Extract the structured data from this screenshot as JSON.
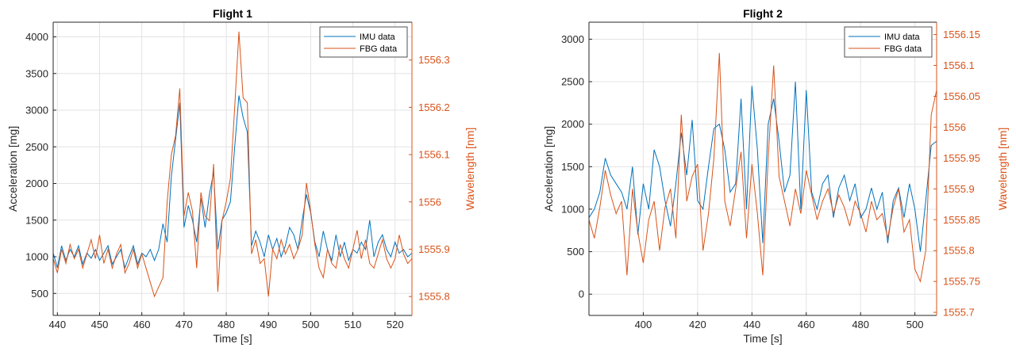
{
  "colors": {
    "imu": "#0072BD",
    "fbg": "#D95319",
    "grid": "#e3e3e3",
    "axis": "#262626"
  },
  "chart_data": [
    {
      "type": "line",
      "title": "Flight 1",
      "xlabel": "Time [s]",
      "ylabel_left": "Acceleration [mg]",
      "ylabel_right": "Wavelength [nm]",
      "xlim": [
        439,
        524
      ],
      "ylim_left": [
        200,
        4200
      ],
      "ylim_right": [
        1555.76,
        1556.38
      ],
      "xticks": [
        440,
        450,
        460,
        470,
        480,
        490,
        500,
        510,
        520
      ],
      "yticks_left": [
        500,
        1000,
        1500,
        2000,
        2500,
        3000,
        3500,
        4000
      ],
      "yticks_right": [
        1555.8,
        1555.9,
        1556,
        1556.1,
        1556.2,
        1556.3
      ],
      "grid": true,
      "legend_position": "top-right",
      "legend": [
        "IMU data",
        "FBG data"
      ],
      "series": [
        {
          "name": "IMU data",
          "axis": "left",
          "x": [
            439,
            440,
            441,
            442,
            443,
            444,
            445,
            446,
            447,
            448,
            449,
            450,
            451,
            452,
            453,
            454,
            455,
            456,
            457,
            458,
            459,
            460,
            461,
            462,
            463,
            464,
            465,
            466,
            467,
            468,
            469,
            470,
            471,
            472,
            473,
            474,
            475,
            476,
            477,
            478,
            479,
            480,
            481,
            482,
            483,
            484,
            485,
            486,
            487,
            488,
            489,
            490,
            491,
            492,
            493,
            494,
            495,
            496,
            497,
            498,
            499,
            500,
            501,
            502,
            503,
            504,
            505,
            506,
            507,
            508,
            509,
            510,
            511,
            512,
            513,
            514,
            515,
            516,
            517,
            518,
            519,
            520,
            521,
            522,
            523,
            524
          ],
          "y": [
            1050,
            850,
            1150,
            950,
            1100,
            1000,
            1150,
            900,
            1050,
            980,
            1100,
            950,
            1050,
            1150,
            900,
            1000,
            1100,
            850,
            1000,
            1150,
            900,
            1050,
            1000,
            1100,
            950,
            1100,
            1450,
            1200,
            2100,
            2600,
            3100,
            1400,
            1700,
            1500,
            1200,
            1800,
            1400,
            1850,
            2150,
            1100,
            1500,
            1600,
            1750,
            2500,
            3200,
            2900,
            2700,
            1150,
            1350,
            1200,
            1000,
            1300,
            1100,
            1250,
            1000,
            1150,
            1400,
            1300,
            1100,
            1500,
            1850,
            1600,
            1200,
            1000,
            1350,
            1100,
            950,
            1300,
            1000,
            1200,
            950,
            1100,
            1050,
            1200,
            1100,
            1500,
            1000,
            1200,
            1300,
            1100,
            1000,
            1200,
            1050,
            1100,
            1000,
            1050
          ]
        },
        {
          "name": "FBG data",
          "axis": "right",
          "x": [
            439,
            440,
            441,
            442,
            443,
            444,
            445,
            446,
            447,
            448,
            449,
            450,
            451,
            452,
            453,
            454,
            455,
            456,
            457,
            458,
            459,
            460,
            461,
            462,
            463,
            464,
            465,
            466,
            467,
            468,
            469,
            470,
            471,
            472,
            473,
            474,
            475,
            476,
            477,
            478,
            479,
            480,
            481,
            482,
            483,
            484,
            485,
            486,
            487,
            488,
            489,
            490,
            491,
            492,
            493,
            494,
            495,
            496,
            497,
            498,
            499,
            500,
            501,
            502,
            503,
            504,
            505,
            506,
            507,
            508,
            509,
            510,
            511,
            512,
            513,
            514,
            515,
            516,
            517,
            518,
            519,
            520,
            521,
            522,
            523,
            524
          ],
          "y": [
            1555.88,
            1555.85,
            1555.9,
            1555.87,
            1555.91,
            1555.88,
            1555.9,
            1555.86,
            1555.89,
            1555.92,
            1555.88,
            1555.93,
            1555.87,
            1555.9,
            1555.86,
            1555.89,
            1555.91,
            1555.85,
            1555.87,
            1555.9,
            1555.86,
            1555.89,
            1555.86,
            1555.83,
            1555.8,
            1555.82,
            1555.84,
            1556.0,
            1556.1,
            1556.14,
            1556.24,
            1555.97,
            1556.02,
            1555.98,
            1555.86,
            1556.02,
            1555.97,
            1555.96,
            1556.08,
            1555.81,
            1555.96,
            1556.0,
            1556.05,
            1556.2,
            1556.36,
            1556.22,
            1556.21,
            1555.89,
            1555.92,
            1555.87,
            1555.88,
            1555.8,
            1555.9,
            1555.88,
            1555.92,
            1555.89,
            1555.91,
            1555.88,
            1555.9,
            1555.93,
            1556.04,
            1555.98,
            1555.91,
            1555.86,
            1555.84,
            1555.9,
            1555.87,
            1555.86,
            1555.91,
            1555.88,
            1555.86,
            1555.9,
            1555.94,
            1555.88,
            1555.92,
            1555.87,
            1555.86,
            1555.89,
            1555.92,
            1555.88,
            1555.86,
            1555.88,
            1555.93,
            1555.89,
            1555.87,
            1555.88
          ]
        }
      ]
    },
    {
      "type": "line",
      "title": "Flight 2",
      "xlabel": "Time [s]",
      "ylabel_left": "Acceleration [mg]",
      "ylabel_right": "Wavelength [nm]",
      "xlim": [
        380,
        508
      ],
      "ylim_left": [
        -250,
        3200
      ],
      "ylim_right": [
        1555.695,
        1556.17
      ],
      "xticks": [
        400,
        420,
        440,
        460,
        480,
        500
      ],
      "yticks_left": [
        0,
        500,
        1000,
        1500,
        2000,
        2500,
        3000
      ],
      "yticks_right": [
        1555.7,
        1555.75,
        1555.8,
        1555.85,
        1555.9,
        1555.95,
        1556,
        1556.05,
        1556.1,
        1556.15
      ],
      "grid": true,
      "legend_position": "top-right",
      "legend": [
        "IMU data",
        "FBG data"
      ],
      "series": [
        {
          "name": "IMU data",
          "axis": "left",
          "x": [
            380,
            382,
            384,
            386,
            388,
            390,
            392,
            394,
            396,
            398,
            400,
            402,
            404,
            406,
            408,
            410,
            412,
            414,
            416,
            418,
            420,
            422,
            424,
            426,
            428,
            430,
            432,
            434,
            436,
            438,
            440,
            442,
            444,
            446,
            448,
            450,
            452,
            454,
            456,
            458,
            460,
            462,
            464,
            466,
            468,
            470,
            472,
            474,
            476,
            478,
            480,
            482,
            484,
            486,
            488,
            490,
            492,
            494,
            496,
            498,
            500,
            502,
            504,
            506,
            508
          ],
          "y": [
            900,
            1000,
            1200,
            1600,
            1400,
            1300,
            1200,
            1000,
            1500,
            700,
            1300,
            1000,
            1700,
            1500,
            1100,
            800,
            1300,
            1900,
            1400,
            2050,
            1100,
            1000,
            1500,
            1950,
            2000,
            1700,
            1200,
            1300,
            2300,
            1000,
            2450,
            1700,
            600,
            2000,
            2300,
            1800,
            1200,
            1400,
            2500,
            1000,
            2400,
            1200,
            1000,
            1300,
            1400,
            900,
            1250,
            1400,
            1100,
            1300,
            900,
            1000,
            1250,
            1000,
            1200,
            600,
            1100,
            1250,
            900,
            1300,
            1000,
            500,
            1100,
            1750,
            1800
          ]
        },
        {
          "name": "FBG data",
          "axis": "right",
          "x": [
            380,
            382,
            384,
            386,
            388,
            390,
            392,
            394,
            396,
            398,
            400,
            402,
            404,
            406,
            408,
            410,
            412,
            414,
            416,
            418,
            420,
            422,
            424,
            426,
            428,
            430,
            432,
            434,
            436,
            438,
            440,
            442,
            444,
            446,
            448,
            450,
            452,
            454,
            456,
            458,
            460,
            462,
            464,
            466,
            468,
            470,
            472,
            474,
            476,
            478,
            480,
            482,
            484,
            486,
            488,
            490,
            492,
            494,
            496,
            498,
            500,
            502,
            504,
            506,
            508
          ],
          "y": [
            1555.85,
            1555.82,
            1555.87,
            1555.93,
            1555.89,
            1555.86,
            1555.88,
            1555.76,
            1555.9,
            1555.83,
            1555.78,
            1555.85,
            1555.88,
            1555.8,
            1555.87,
            1555.9,
            1555.82,
            1556.02,
            1555.88,
            1555.92,
            1555.94,
            1555.8,
            1555.86,
            1555.95,
            1556.12,
            1555.88,
            1555.84,
            1555.9,
            1555.96,
            1555.82,
            1555.94,
            1555.86,
            1555.76,
            1555.95,
            1556.1,
            1555.92,
            1555.88,
            1555.84,
            1555.9,
            1555.86,
            1555.93,
            1555.89,
            1555.85,
            1555.88,
            1555.9,
            1555.86,
            1555.89,
            1555.87,
            1555.84,
            1555.88,
            1555.86,
            1555.83,
            1555.88,
            1555.85,
            1555.86,
            1555.82,
            1555.87,
            1555.9,
            1555.83,
            1555.85,
            1555.77,
            1555.75,
            1555.8,
            1556.02,
            1556.06
          ]
        }
      ]
    }
  ]
}
